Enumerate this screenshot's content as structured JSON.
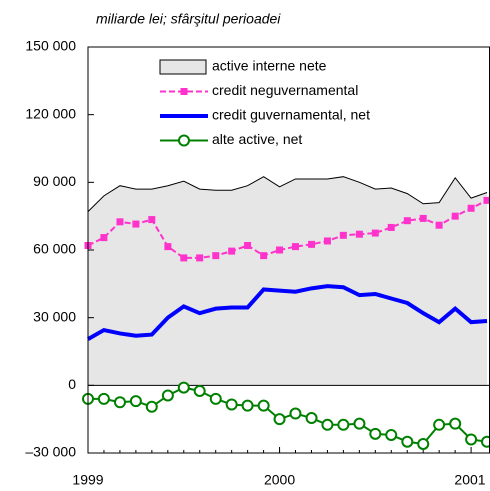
{
  "chart_data": {
    "type": "line",
    "subtitle": "miliarde lei; sfârşitul perioadei",
    "x": [
      1999,
      1999.083,
      1999.167,
      1999.25,
      1999.333,
      1999.417,
      1999.5,
      1999.583,
      1999.667,
      1999.75,
      1999.833,
      1999.917,
      2000,
      2000.083,
      2000.167,
      2000.25,
      2000.333,
      2000.417,
      2000.5,
      2000.583,
      2000.667,
      2000.75,
      2000.833,
      2000.917,
      2001,
      2001.083
    ],
    "xlim": [
      1999,
      2001.083
    ],
    "xticks": [
      1999,
      2000,
      2001
    ],
    "ylim": [
      -30000,
      150000
    ],
    "yticks": [
      {
        "value": 150000,
        "label": "150 000"
      },
      {
        "value": 120000,
        "label": "120 000"
      },
      {
        "value": 90000,
        "label": "90 000"
      },
      {
        "value": 60000,
        "label": "60 000"
      },
      {
        "value": 30000,
        "label": "30 000"
      },
      0,
      {
        "value": -30000,
        "label": "–30 000"
      }
    ],
    "series": [
      {
        "name": "active interne nete",
        "kind": "area",
        "color": "#e6e6e6",
        "values": [
          77000,
          84000,
          88500,
          87000,
          87000,
          88500,
          90500,
          87000,
          86500,
          86500,
          88500,
          92500,
          88000,
          91500,
          91500,
          91500,
          92500,
          90000,
          87000,
          87500,
          85000,
          80500,
          81000,
          92000,
          83000,
          85500
        ]
      },
      {
        "name": "credit neguvernamental",
        "kind": "dash-square",
        "color": "#ff33cc",
        "values": [
          62000,
          65500,
          72500,
          71500,
          73500,
          61500,
          56500,
          56500,
          57500,
          59500,
          62000,
          57500,
          60000,
          61500,
          62500,
          64000,
          66500,
          67000,
          67500,
          70000,
          73000,
          74000,
          71000,
          75000,
          78500,
          82000
        ]
      },
      {
        "name": "credit guvernamental, net",
        "kind": "thick",
        "color": "#0000ff",
        "values": [
          20500,
          24500,
          23000,
          22000,
          22500,
          30000,
          35000,
          32000,
          34000,
          34500,
          34500,
          42500,
          42000,
          41500,
          43000,
          44000,
          43500,
          40000,
          40500,
          38500,
          36500,
          32000,
          28000,
          34000,
          28000,
          28500
        ]
      },
      {
        "name": "alte active, net",
        "kind": "circle",
        "color": "#008000",
        "values": [
          -6000,
          -6000,
          -7500,
          -7000,
          -9500,
          -4500,
          -1000,
          -2500,
          -6000,
          -8500,
          -9000,
          -9000,
          -15000,
          -12500,
          -14500,
          -17500,
          -17500,
          -17000,
          -21500,
          -22000,
          -25000,
          -26000,
          -17500,
          -17000,
          -24000,
          -25000
        ]
      }
    ]
  }
}
